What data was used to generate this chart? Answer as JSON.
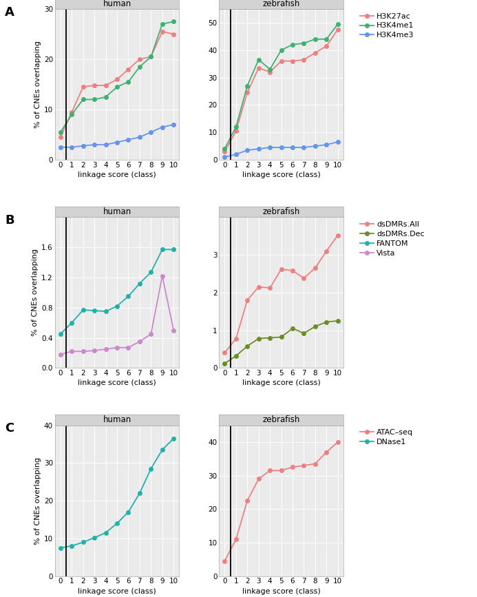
{
  "panel_A": {
    "human": {
      "x": [
        0,
        1,
        2,
        3,
        4,
        5,
        6,
        7,
        8,
        9,
        10
      ],
      "H3K27ac": [
        4.5,
        9.5,
        14.5,
        14.8,
        14.8,
        16.0,
        18.0,
        20.0,
        20.5,
        25.5,
        25.0
      ],
      "H3K4me1": [
        5.5,
        9.0,
        12.0,
        12.0,
        12.5,
        14.5,
        15.5,
        18.5,
        20.5,
        27.0,
        27.5
      ],
      "H3K4me3": [
        2.5,
        2.5,
        2.8,
        3.0,
        3.0,
        3.5,
        4.0,
        4.5,
        5.5,
        6.5,
        7.0
      ],
      "ylim": [
        0,
        30
      ],
      "yticks": [
        0,
        10,
        20,
        30
      ]
    },
    "zebrafish": {
      "x": [
        0,
        1,
        2,
        3,
        4,
        5,
        6,
        7,
        8,
        9,
        10
      ],
      "H3K27ac": [
        3.0,
        10.5,
        24.5,
        33.5,
        32.0,
        36.0,
        36.0,
        36.5,
        39.0,
        41.5,
        47.5
      ],
      "H3K4me1": [
        4.0,
        12.0,
        27.0,
        36.5,
        33.0,
        40.0,
        42.0,
        42.5,
        44.0,
        44.0,
        49.5
      ],
      "H3K4me3": [
        1.0,
        2.0,
        3.5,
        4.0,
        4.5,
        4.5,
        4.5,
        4.5,
        5.0,
        5.5,
        6.5
      ],
      "ylim": [
        0,
        55
      ],
      "yticks": [
        0,
        10,
        20,
        30,
        40,
        50
      ]
    }
  },
  "panel_B": {
    "human": {
      "x": [
        0,
        1,
        2,
        3,
        4,
        5,
        6,
        7,
        8,
        9,
        10
      ],
      "FANTOM": [
        0.45,
        0.6,
        0.77,
        0.76,
        0.75,
        0.82,
        0.95,
        1.12,
        1.27,
        1.57,
        1.57
      ],
      "Vista": [
        0.18,
        0.22,
        0.22,
        0.23,
        0.25,
        0.27,
        0.27,
        0.35,
        0.45,
        1.22,
        0.5
      ],
      "ylim": [
        0,
        2.0
      ],
      "yticks": [
        0.0,
        0.4,
        0.8,
        1.2,
        1.6
      ]
    },
    "zebrafish": {
      "x": [
        0,
        1,
        2,
        3,
        4,
        5,
        6,
        7,
        8,
        9,
        10
      ],
      "dsDMRs_All": [
        0.4,
        0.78,
        1.8,
        2.15,
        2.12,
        2.62,
        2.58,
        2.38,
        2.65,
        3.1,
        3.52
      ],
      "dsDMRs_Dec": [
        0.12,
        0.32,
        0.58,
        0.78,
        0.8,
        0.82,
        1.05,
        0.92,
        1.1,
        1.22,
        1.25
      ],
      "ylim": [
        0,
        4.0
      ],
      "yticks": [
        0,
        1,
        2,
        3
      ]
    }
  },
  "panel_C": {
    "human": {
      "x": [
        0,
        1,
        2,
        3,
        4,
        5,
        6,
        7,
        8,
        9,
        10
      ],
      "DNase1": [
        7.5,
        8.0,
        9.0,
        10.2,
        11.5,
        14.0,
        17.0,
        22.0,
        28.5,
        33.5,
        36.5
      ],
      "ylim": [
        0,
        40
      ],
      "yticks": [
        0,
        10,
        20,
        30,
        40
      ]
    },
    "zebrafish": {
      "x": [
        0,
        1,
        2,
        3,
        4,
        5,
        6,
        7,
        8,
        9,
        10
      ],
      "ATAC_seq": [
        4.5,
        11.0,
        22.5,
        29.0,
        31.5,
        31.5,
        32.5,
        33.0,
        33.5,
        37.0,
        40.0
      ],
      "ylim": [
        0,
        45
      ],
      "yticks": [
        0,
        10,
        20,
        30,
        40
      ]
    }
  },
  "colors": {
    "H3K27ac": "#F08080",
    "H3K4me1": "#3CB371",
    "H3K4me3": "#6495ED",
    "dsDMRs_All": "#F08080",
    "dsDMRs_Dec": "#6B8E23",
    "FANTOM": "#20B2AA",
    "Vista": "#CC88CC",
    "ATAC_seq": "#F08080",
    "DNase1": "#20B2AA"
  },
  "vline_x": 0.5,
  "header_bg": "#D3D3D3",
  "plot_bg": "#EBEBEB",
  "grid_color": "#FFFFFF",
  "markersize": 4,
  "linewidth": 1.3,
  "xlabel": "linkage score (class)",
  "ylabel": "% of CNEs overlapping",
  "title_human": "human",
  "title_zebrafish": "zebrafish",
  "legend_A": [
    "H3K27ac",
    "H3K4me1",
    "H3K4me3"
  ],
  "legend_B": [
    "dsDMRs.All",
    "dsDMRs.Dec",
    "FANTOM",
    "Vista"
  ],
  "legend_B_colors": [
    "#F08080",
    "#6B8E23",
    "#20B2AA",
    "#CC88CC"
  ],
  "legend_C": [
    "ATAC–seq",
    "DNase1"
  ],
  "legend_C_colors": [
    "#F08080",
    "#20B2AA"
  ]
}
